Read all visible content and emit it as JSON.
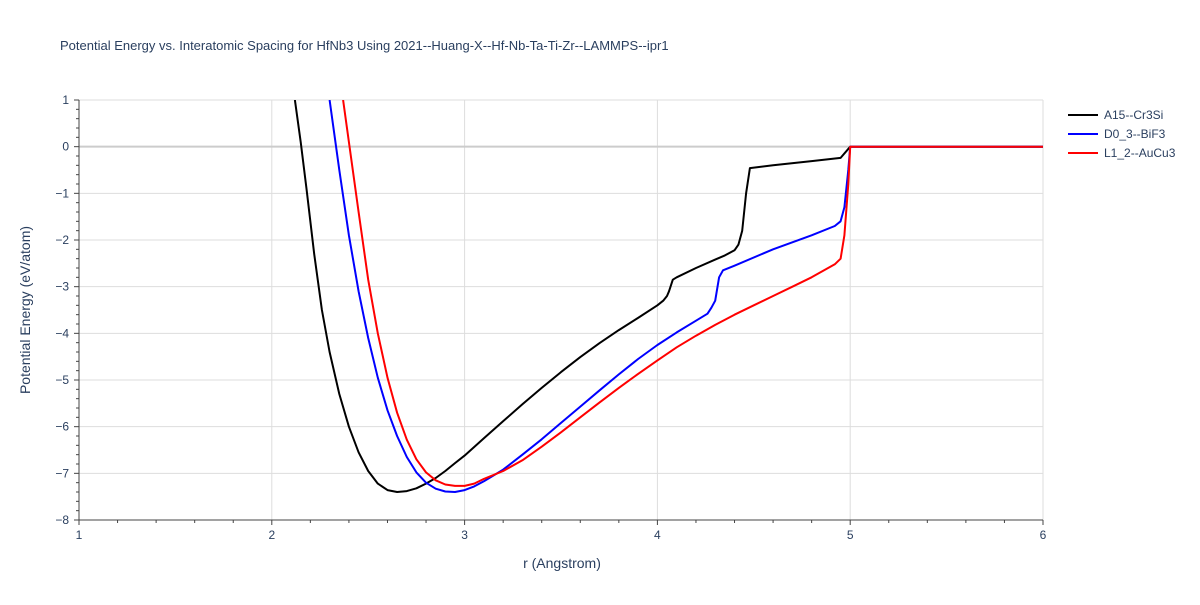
{
  "chart_data": {
    "type": "line",
    "title": "Potential Energy vs. Interatomic Spacing for HfNb3 Using 2021--Huang-X--Hf-Nb-Ta-Ti-Zr--LAMMPS--ipr1",
    "xlabel": "r (Angstrom)",
    "ylabel": "Potential Energy (eV/atom)",
    "xlim": [
      1,
      6
    ],
    "ylim": [
      -8,
      1
    ],
    "xticks": [
      1,
      2,
      3,
      4,
      5,
      6
    ],
    "yticks": [
      1,
      0,
      -1,
      -2,
      -3,
      -4,
      -5,
      -6,
      -7,
      -8
    ],
    "grid": true,
    "legend_position": "top-right",
    "series": [
      {
        "name": "A15--Cr3Si",
        "color": "#000000",
        "x": [
          2.12,
          2.15,
          2.18,
          2.22,
          2.26,
          2.3,
          2.35,
          2.4,
          2.45,
          2.5,
          2.55,
          2.6,
          2.65,
          2.7,
          2.75,
          2.8,
          2.85,
          2.9,
          2.95,
          3.0,
          3.1,
          3.2,
          3.3,
          3.4,
          3.5,
          3.6,
          3.7,
          3.8,
          3.9,
          4.0,
          4.03,
          4.05,
          4.06,
          4.08,
          4.1,
          4.2,
          4.3,
          4.35,
          4.4,
          4.42,
          4.44,
          4.46,
          4.48,
          4.6,
          4.8,
          4.95,
          5.0,
          5.5,
          6.0
        ],
        "y": [
          1.0,
          0.1,
          -0.9,
          -2.3,
          -3.5,
          -4.4,
          -5.3,
          -6.0,
          -6.55,
          -6.95,
          -7.22,
          -7.36,
          -7.4,
          -7.38,
          -7.32,
          -7.22,
          -7.1,
          -6.95,
          -6.78,
          -6.62,
          -6.25,
          -5.88,
          -5.52,
          -5.17,
          -4.83,
          -4.51,
          -4.21,
          -3.93,
          -3.67,
          -3.4,
          -3.3,
          -3.2,
          -3.1,
          -2.85,
          -2.8,
          -2.6,
          -2.42,
          -2.33,
          -2.22,
          -2.1,
          -1.8,
          -1.0,
          -0.46,
          -0.4,
          -0.31,
          -0.24,
          0.0,
          0.0,
          0.0
        ]
      },
      {
        "name": "D0_3--BiF3",
        "color": "#0000ff",
        "x": [
          2.3,
          2.35,
          2.4,
          2.45,
          2.5,
          2.55,
          2.6,
          2.65,
          2.7,
          2.75,
          2.8,
          2.85,
          2.9,
          2.95,
          3.0,
          3.05,
          3.1,
          3.2,
          3.3,
          3.4,
          3.5,
          3.6,
          3.7,
          3.8,
          3.9,
          4.0,
          4.1,
          4.2,
          4.26,
          4.28,
          4.3,
          4.32,
          4.34,
          4.4,
          4.6,
          4.8,
          4.92,
          4.95,
          4.97,
          4.99,
          5.0,
          5.5,
          6.0
        ],
        "y": [
          1.0,
          -0.5,
          -1.9,
          -3.1,
          -4.1,
          -4.95,
          -5.65,
          -6.2,
          -6.65,
          -6.98,
          -7.2,
          -7.33,
          -7.39,
          -7.4,
          -7.36,
          -7.28,
          -7.17,
          -6.92,
          -6.6,
          -6.27,
          -5.92,
          -5.57,
          -5.22,
          -4.88,
          -4.55,
          -4.25,
          -3.98,
          -3.73,
          -3.58,
          -3.45,
          -3.3,
          -2.8,
          -2.65,
          -2.55,
          -2.2,
          -1.9,
          -1.7,
          -1.6,
          -1.3,
          -0.5,
          0.0,
          0.0,
          0.0
        ]
      },
      {
        "name": "L1_2--AuCu3",
        "color": "#ff0000",
        "x": [
          2.37,
          2.4,
          2.45,
          2.5,
          2.55,
          2.6,
          2.65,
          2.7,
          2.75,
          2.8,
          2.85,
          2.9,
          2.95,
          3.0,
          3.05,
          3.1,
          3.2,
          3.3,
          3.4,
          3.5,
          3.6,
          3.7,
          3.8,
          3.9,
          4.0,
          4.1,
          4.2,
          4.3,
          4.4,
          4.5,
          4.6,
          4.7,
          4.8,
          4.92,
          4.95,
          4.97,
          4.99,
          5.0,
          5.5,
          6.0
        ],
        "y": [
          1.0,
          0.1,
          -1.4,
          -2.85,
          -4.0,
          -4.95,
          -5.7,
          -6.28,
          -6.7,
          -6.98,
          -7.15,
          -7.24,
          -7.27,
          -7.27,
          -7.22,
          -7.12,
          -6.95,
          -6.72,
          -6.43,
          -6.12,
          -5.8,
          -5.48,
          -5.17,
          -4.87,
          -4.58,
          -4.3,
          -4.05,
          -3.82,
          -3.6,
          -3.4,
          -3.2,
          -3.0,
          -2.8,
          -2.52,
          -2.4,
          -1.9,
          -0.8,
          0.0,
          0.0,
          0.0
        ]
      }
    ]
  }
}
